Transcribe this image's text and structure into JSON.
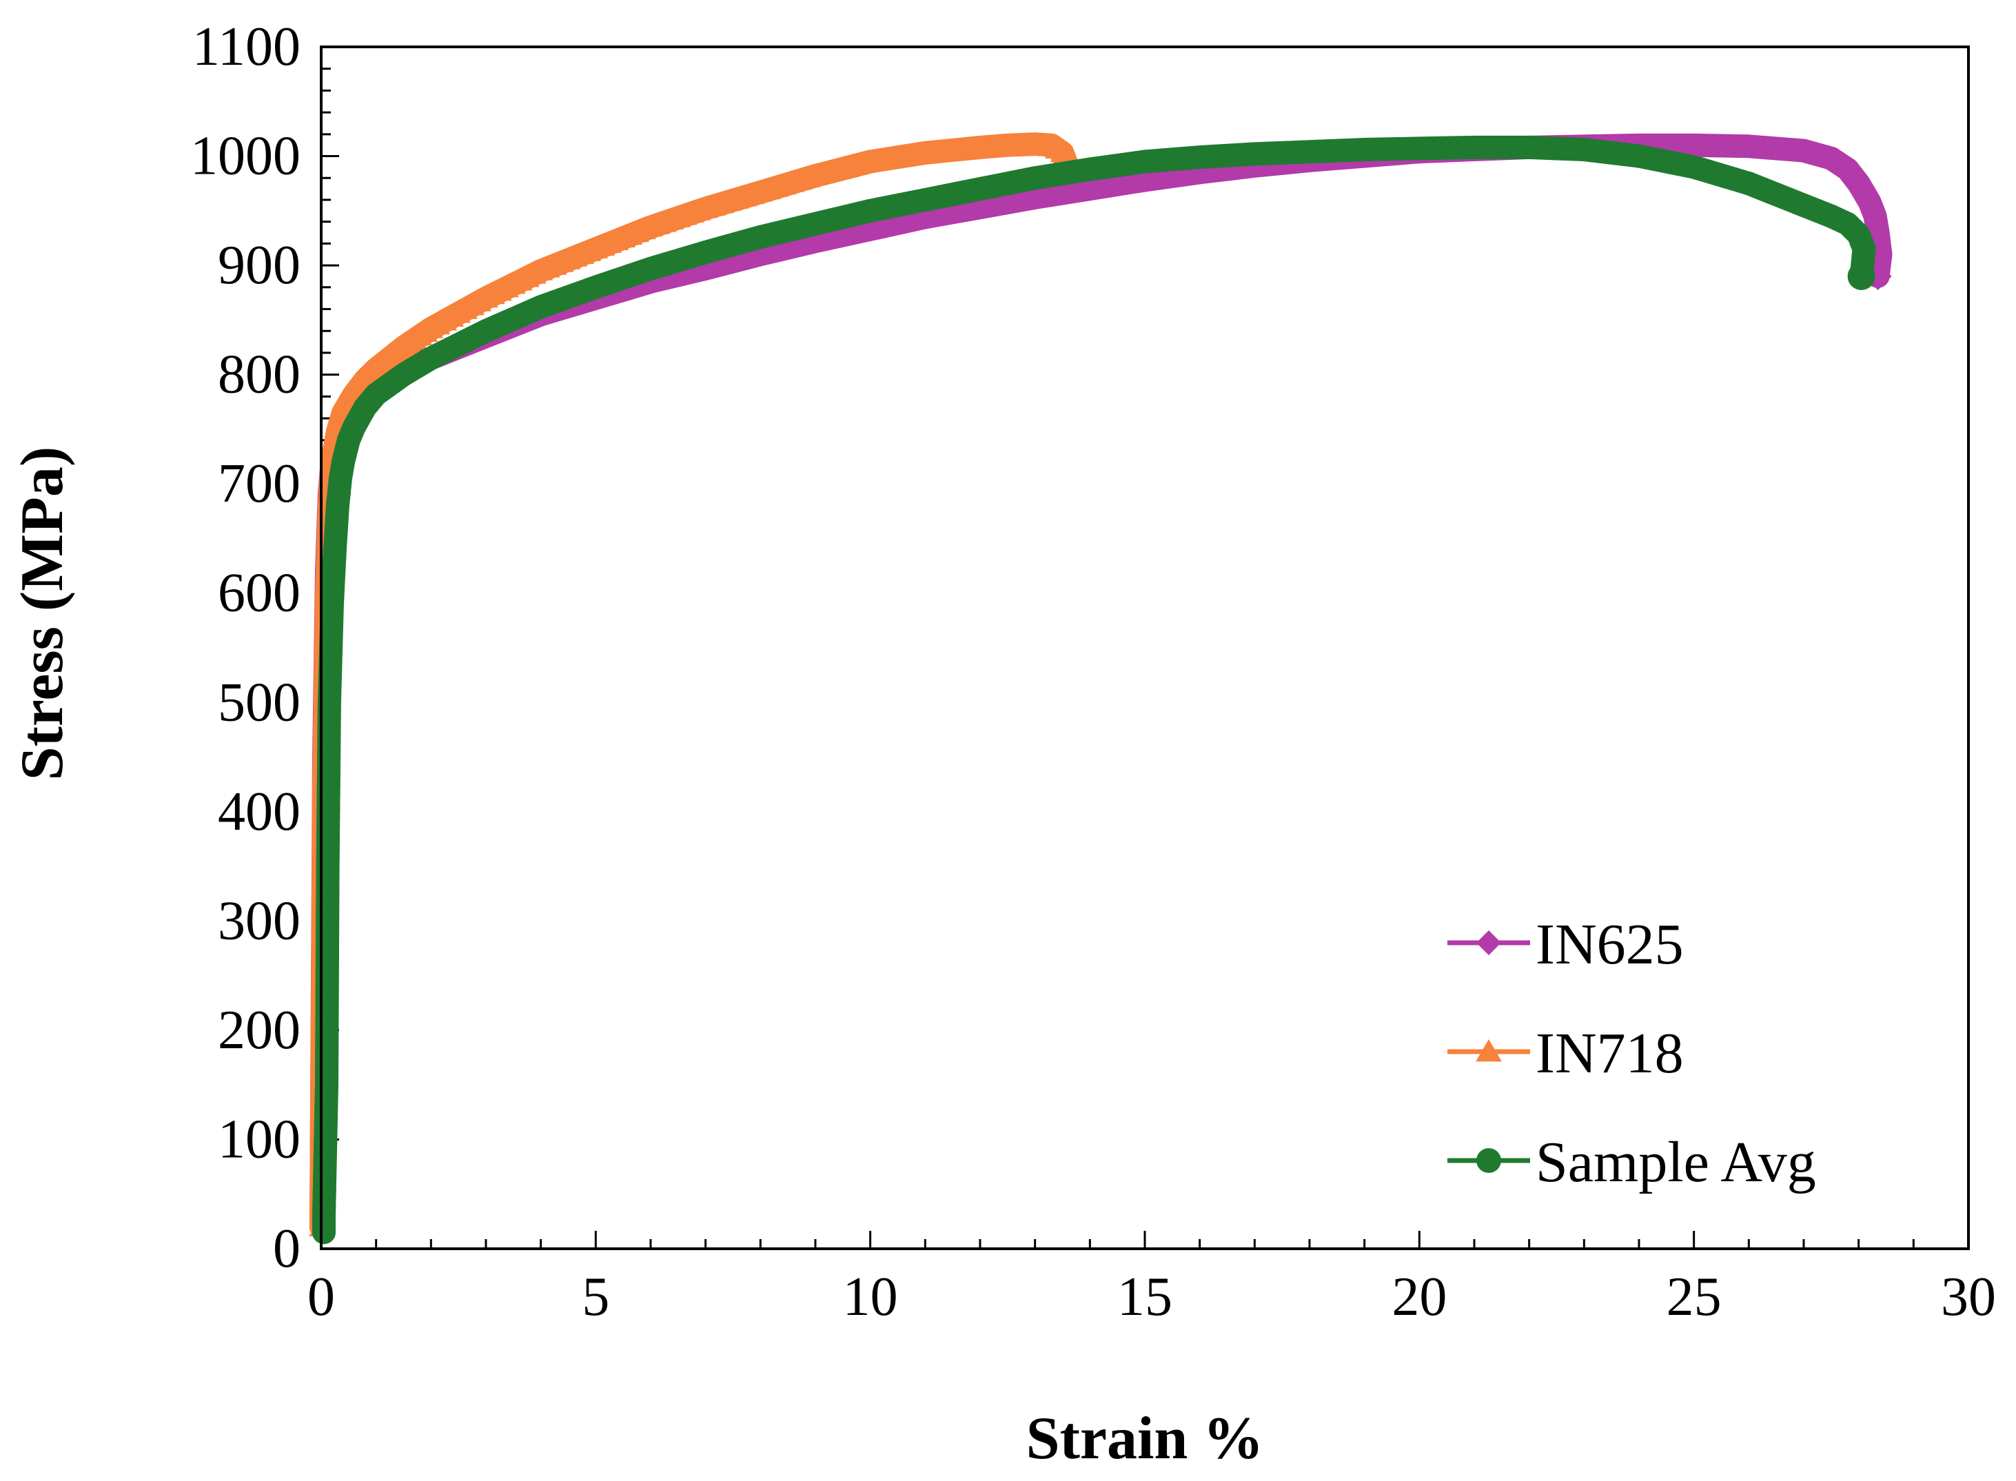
{
  "chart_data": {
    "type": "line",
    "title": "",
    "xlabel": "Strain %",
    "ylabel": "Stress (MPa)",
    "xlim": [
      0,
      30
    ],
    "ylim": [
      0,
      1100
    ],
    "x_ticks": [
      "0",
      "5",
      "10",
      "15",
      "20",
      "25",
      "30"
    ],
    "y_ticks": [
      "0",
      "100",
      "200",
      "300",
      "400",
      "500",
      "600",
      "700",
      "800",
      "900",
      "1000",
      "1100"
    ],
    "x_tick_values": [
      0,
      5,
      10,
      15,
      20,
      25,
      30
    ],
    "y_tick_values": [
      0,
      100,
      200,
      300,
      400,
      500,
      600,
      700,
      800,
      900,
      1000,
      1100
    ],
    "x_minor_step": 1,
    "y_minor_step": 20,
    "grid": false,
    "legend_position": "bottom-right",
    "series": [
      {
        "name": "IN625",
        "color": "#B23AA9",
        "marker": "diamond",
        "x": [
          0,
          0.02,
          0.05,
          0.1,
          0.15,
          0.2,
          0.3,
          0.4,
          0.6,
          0.8,
          1,
          1.5,
          2,
          3,
          4,
          5,
          6,
          7,
          8,
          9,
          10,
          11,
          12,
          13,
          14,
          15,
          16,
          17,
          18,
          19,
          20,
          21,
          22,
          23,
          24,
          25,
          26,
          27,
          27.5,
          27.8,
          28,
          28.2,
          28.3,
          28.35,
          28.4,
          28.35
        ],
        "y": [
          20,
          200,
          450,
          620,
          690,
          720,
          745,
          760,
          775,
          785,
          792,
          805,
          815,
          835,
          855,
          870,
          885,
          897,
          910,
          922,
          933,
          944,
          953,
          962,
          970,
          978,
          985,
          991,
          996,
          1000,
          1004,
          1006,
          1008,
          1009,
          1010,
          1010,
          1009,
          1005,
          998,
          988,
          975,
          958,
          945,
          930,
          910,
          890
        ]
      },
      {
        "name": "IN718",
        "color": "#F7823B",
        "marker": "triangle",
        "x": [
          0,
          0.02,
          0.05,
          0.1,
          0.15,
          0.2,
          0.3,
          0.4,
          0.6,
          0.8,
          1,
          1.5,
          2,
          3,
          4,
          5,
          6,
          7,
          8,
          9,
          10,
          11,
          12,
          12.5,
          13,
          13.3,
          13.5,
          13.6
        ],
        "y": [
          20,
          180,
          420,
          600,
          680,
          720,
          748,
          765,
          782,
          795,
          805,
          825,
          842,
          870,
          895,
          915,
          935,
          952,
          967,
          982,
          995,
          1003,
          1008,
          1010,
          1011,
          1010,
          1003,
          990
        ]
      },
      {
        "name": "Sample Avg",
        "color": "#1F7A30",
        "marker": "circle",
        "x": [
          0.05,
          0.05,
          0.1,
          0.12,
          0.15,
          0.2,
          0.25,
          0.3,
          0.35,
          0.4,
          0.5,
          0.6,
          0.8,
          1,
          1.5,
          2,
          3,
          4,
          5,
          6,
          7,
          8,
          9,
          10,
          11,
          12,
          13,
          14,
          15,
          16,
          17,
          18,
          19,
          20,
          21,
          22,
          23,
          24,
          25,
          26,
          27,
          27.5,
          27.8,
          28,
          28.1,
          28.05
        ],
        "y": [
          15,
          30,
          150,
          350,
          500,
          590,
          640,
          680,
          705,
          720,
          740,
          752,
          770,
          782,
          800,
          815,
          840,
          862,
          880,
          897,
          912,
          926,
          938,
          950,
          960,
          970,
          980,
          988,
          995,
          999,
          1002,
          1004,
          1006,
          1007,
          1008,
          1008,
          1006,
          1000,
          990,
          975,
          955,
          945,
          938,
          928,
          915,
          890
        ]
      }
    ]
  }
}
